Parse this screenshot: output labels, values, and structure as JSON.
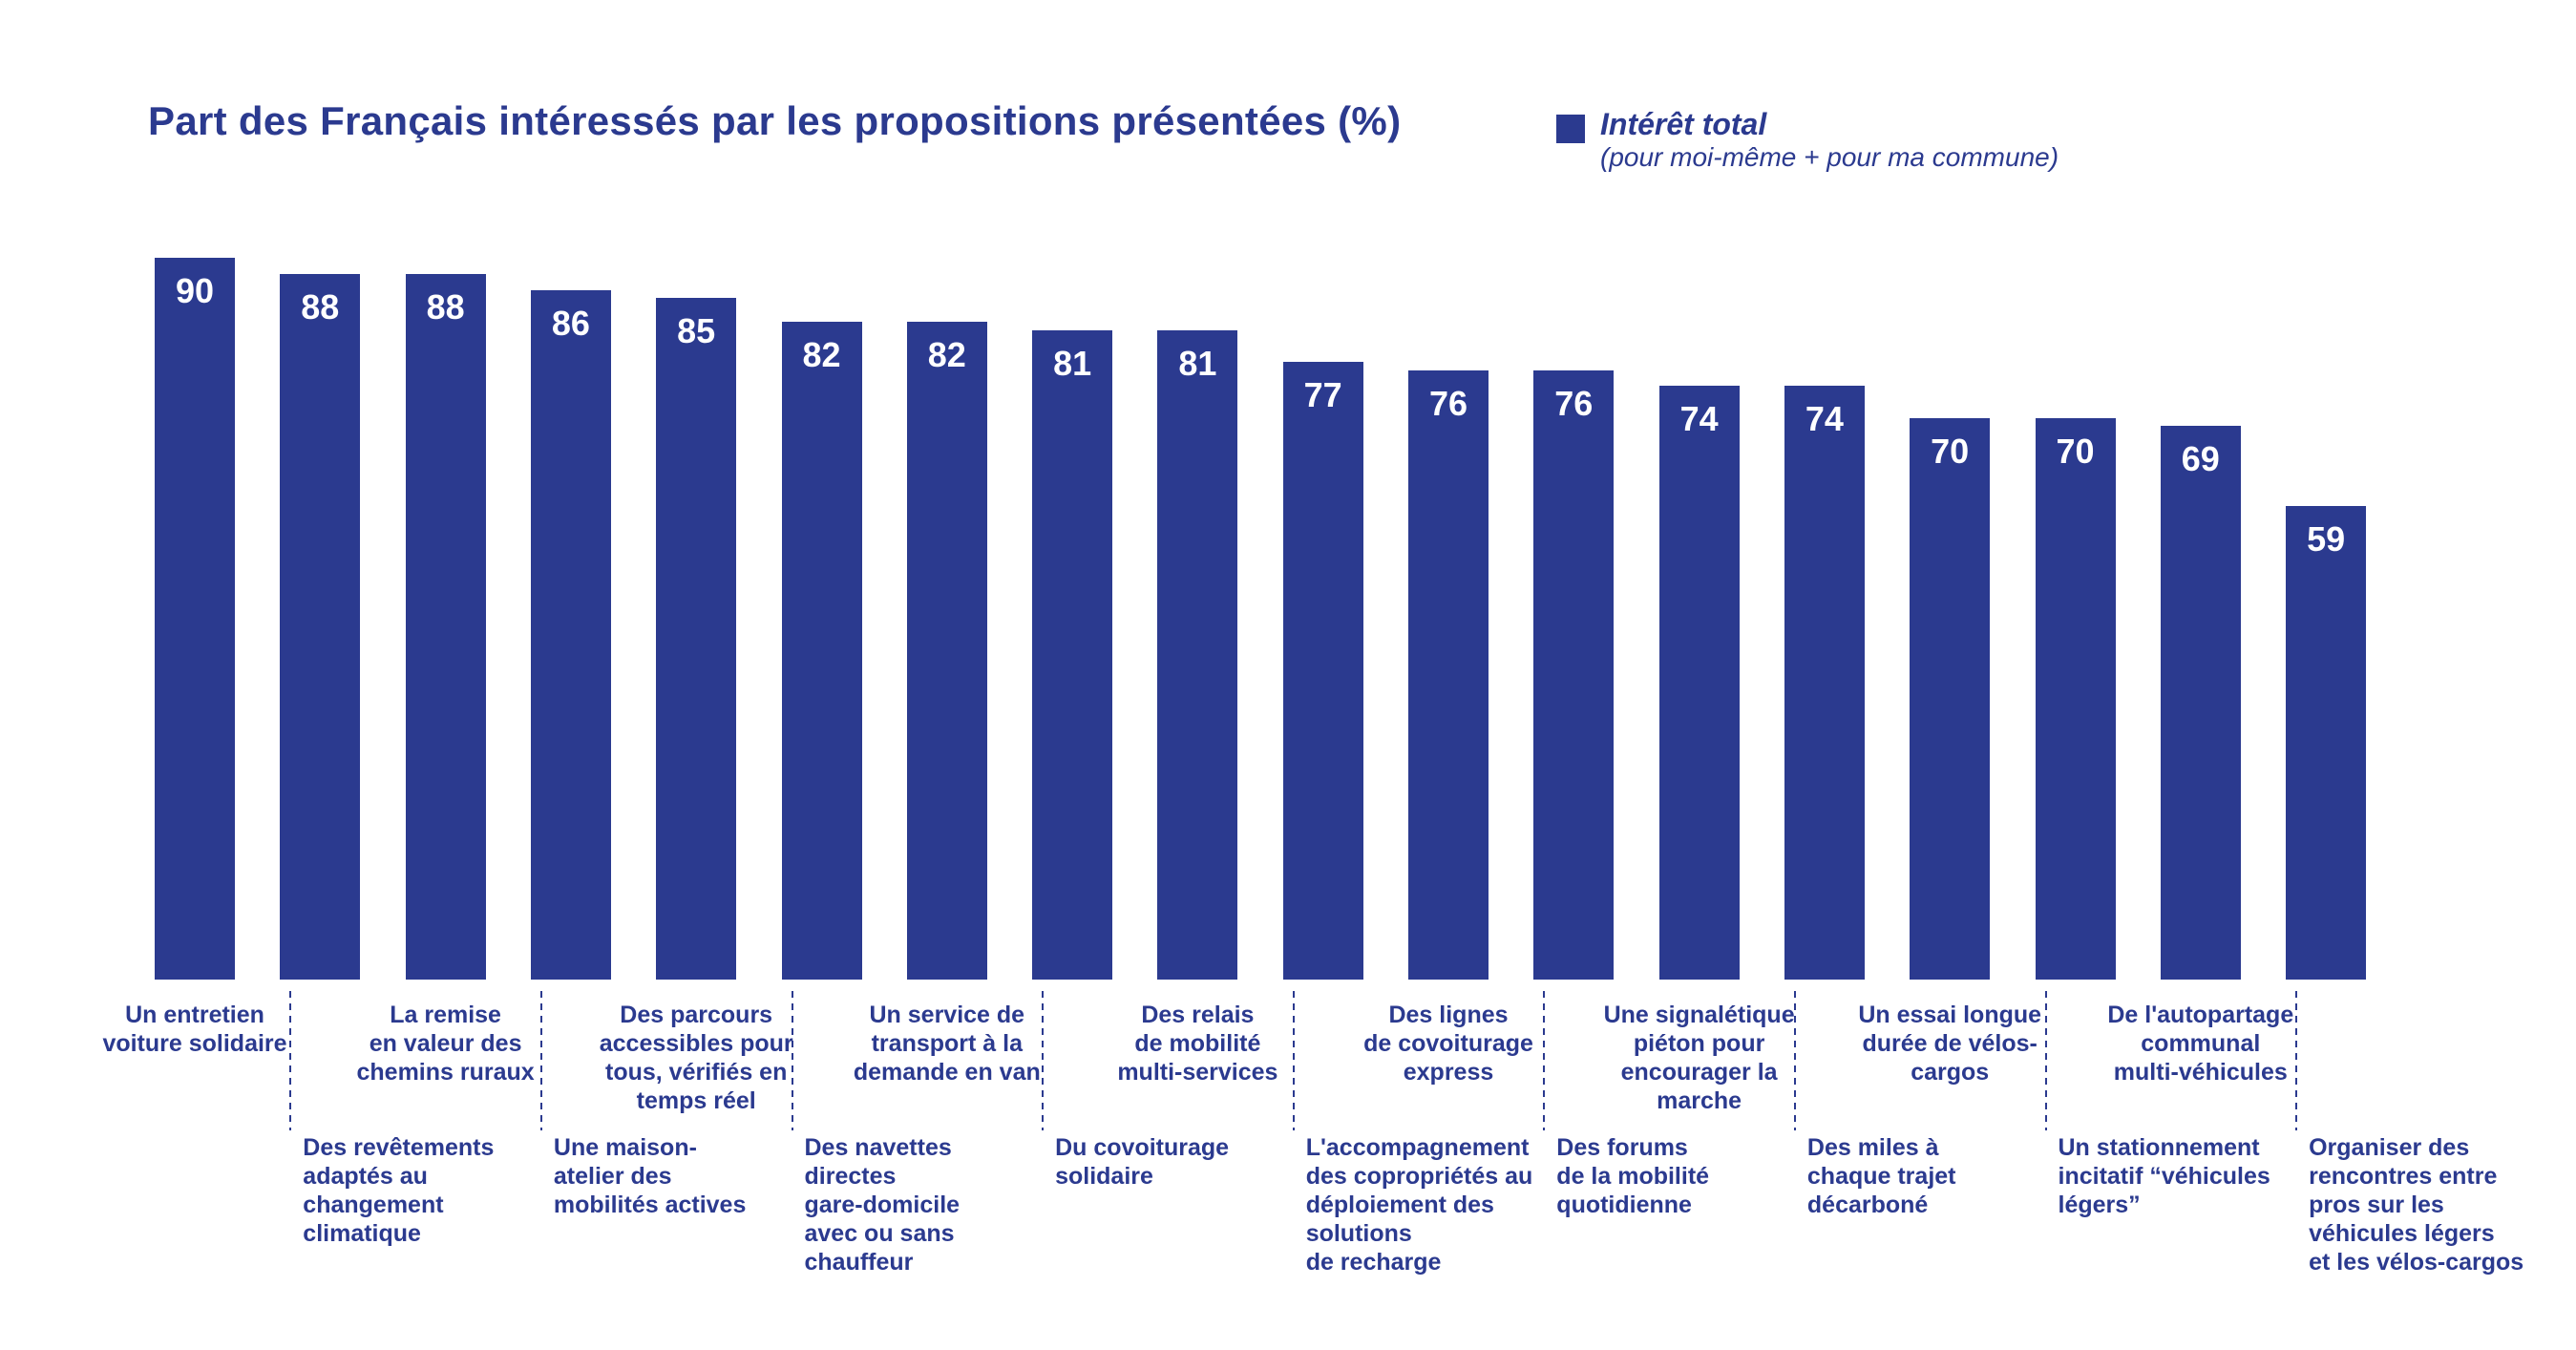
{
  "title": "Part des Français intéressés par les propositions présentées (%)",
  "legend": {
    "label": "Intérêt total",
    "sublabel": "(pour moi-même + pour ma commune)"
  },
  "colors": {
    "navy": "#2b3a8f",
    "bar": "#2b3a8f",
    "value_text": "#ffffff",
    "background": "#ffffff"
  },
  "chart_data": {
    "type": "bar",
    "title": "Part des Français intéressés par les propositions présentées (%)",
    "legend": [
      "Intérêt total (pour moi-même + pour ma commune)"
    ],
    "legend_position": "top-right",
    "ylim": [
      0,
      100
    ],
    "grid": false,
    "value_labels_shown": true,
    "categories": [
      "Un entretien voiture solidaire",
      "Des revêtements adaptés au changement climatique",
      "La remise en valeur des chemins ruraux",
      "Une maison-atelier des mobilités actives",
      "Des parcours accessibles pour tous, vérifiés en temps réel",
      "Des navettes directes gare-domicile avec ou sans chauffeur",
      "Un service de transport à la demande en van",
      "Du covoiturage solidaire",
      "Des relais de mobilité multi-services",
      "L'accompagnement des copropriétés au déploiement des solutions de recharge",
      "Des lignes de covoiturage express",
      "Des forums de la mobilité quotidienne",
      "Une signalétique piéton pour encourager la marche",
      "Des miles à chaque trajet décarboné",
      "Un essai longue durée de vélos-cargos",
      "Un stationnement incitatif “véhicules légers”",
      "De l'autopartage communal multi-véhicules",
      "Organiser des rencontres entre pros sur les véhicules légers et les vélos-cargos"
    ],
    "values": [
      90,
      88,
      88,
      86,
      85,
      82,
      82,
      81,
      81,
      77,
      76,
      76,
      74,
      74,
      70,
      70,
      69,
      59
    ],
    "label_row": [
      "top",
      "bottom",
      "top",
      "bottom",
      "top",
      "bottom",
      "top",
      "bottom",
      "top",
      "bottom",
      "top",
      "bottom",
      "top",
      "bottom",
      "top",
      "bottom",
      "top",
      "bottom"
    ],
    "label_lines": [
      [
        "Un entretien",
        "voiture solidaire"
      ],
      [
        "Des revêtements",
        "adaptés au",
        "changement",
        "climatique"
      ],
      [
        "La remise",
        "en valeur des",
        "chemins ruraux"
      ],
      [
        "Une maison-",
        "atelier des",
        "mobilités actives"
      ],
      [
        "Des parcours",
        "accessibles pour",
        "tous, vérifiés en",
        "temps réel"
      ],
      [
        "Des navettes",
        "directes",
        "gare-domicile",
        "avec ou sans",
        "chauffeur"
      ],
      [
        "Un service de",
        "transport à la",
        "demande en van"
      ],
      [
        "Du covoiturage",
        "solidaire"
      ],
      [
        "Des relais",
        "de mobilité",
        "multi-services"
      ],
      [
        "L'accompagnement",
        "des copropriétés au",
        "déploiement des",
        "solutions",
        "de recharge"
      ],
      [
        "Des lignes",
        "de covoiturage",
        "express"
      ],
      [
        "Des forums",
        "de la mobilité",
        "quotidienne"
      ],
      [
        "Une signalétique",
        "piéton pour",
        "encourager la",
        "marche"
      ],
      [
        "Des miles à",
        "chaque trajet",
        "décarboné"
      ],
      [
        "Un essai longue",
        "durée de vélos-",
        "cargos"
      ],
      [
        "Un stationnement",
        "incitatif “véhicules",
        "légers”"
      ],
      [
        "De l'autopartage",
        "communal",
        "multi-véhicules"
      ],
      [
        "Organiser des",
        "rencontres entre",
        "pros sur les",
        "véhicules légers",
        "et les vélos-cargos"
      ]
    ]
  }
}
